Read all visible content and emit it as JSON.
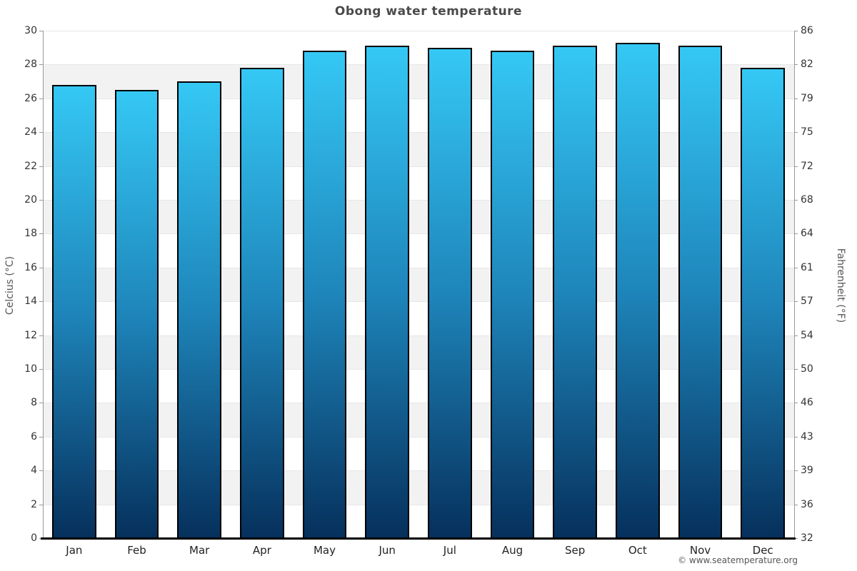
{
  "chart_data": {
    "type": "bar",
    "title": "Obong water temperature",
    "categories": [
      "Jan",
      "Feb",
      "Mar",
      "Apr",
      "May",
      "Jun",
      "Jul",
      "Aug",
      "Sep",
      "Oct",
      "Nov",
      "Dec"
    ],
    "values": [
      26.8,
      26.5,
      27.0,
      27.8,
      28.8,
      29.1,
      29.0,
      28.8,
      29.1,
      29.3,
      29.1,
      27.8
    ],
    "ylabel_left": "Celcius (°C)",
    "ylabel_right": "Fahrenheit (°F)",
    "ylim": [
      0,
      30
    ],
    "y_left_ticks": [
      30,
      28,
      26,
      24,
      22,
      20,
      18,
      16,
      14,
      12,
      10,
      8,
      6,
      4,
      2,
      0
    ],
    "y_right_ticks": [
      86,
      82,
      79,
      75,
      72,
      68,
      64,
      61,
      57,
      54,
      50,
      46,
      43,
      39,
      36,
      32
    ],
    "grid": "alternating horizontal bands every 2 degrees, white and light gray",
    "legend": "none",
    "colors": {
      "bar_gradient_top": "#35c8f5",
      "bar_gradient_mid": "#1e85ba",
      "bar_gradient_bottom": "#06305c",
      "bar_border": "#000000",
      "band_shade": "#f2f2f2",
      "gridline": "#e7e7e7",
      "axis_line": "#999999",
      "baseline": "#000000",
      "title_text": "#4a4a4a",
      "tick_text": "#333333"
    }
  },
  "footer": {
    "copyright": "© www.seatemperature.org"
  }
}
